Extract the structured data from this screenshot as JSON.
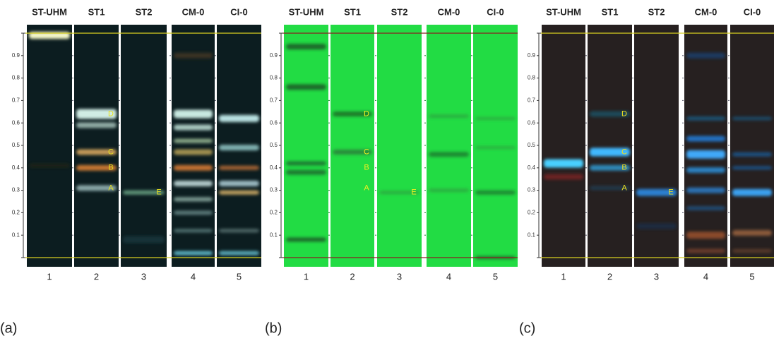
{
  "panels": [
    {
      "label": "(a)",
      "lanes": [
        {
          "name": "ST-UHM",
          "number": "1"
        },
        {
          "name": "ST1",
          "number": "2"
        },
        {
          "name": "ST2",
          "number": "3"
        },
        {
          "name": "CM-0",
          "number": "4"
        },
        {
          "name": "CI-0",
          "number": "5"
        }
      ],
      "scale": [
        "0.9",
        "0.8",
        "0.7",
        "0.6",
        "0.5",
        "0.4",
        "0.3",
        "0.2",
        "0.1"
      ],
      "markers": [
        "D",
        "C",
        "B",
        "A",
        "E"
      ]
    },
    {
      "label": "(b)",
      "lanes": [
        {
          "name": "ST-UHM",
          "number": "1"
        },
        {
          "name": "ST1",
          "number": "2"
        },
        {
          "name": "ST2",
          "number": "3"
        },
        {
          "name": "CM-0",
          "number": "4"
        },
        {
          "name": "CI-0",
          "number": "5"
        }
      ],
      "scale": [
        "0.9",
        "0.8",
        "0.7",
        "0.6",
        "0.5",
        "0.4",
        "0.3",
        "0.2",
        "0.1"
      ],
      "markers": [
        "D",
        "C",
        "B",
        "A",
        "E"
      ]
    },
    {
      "label": "(c)",
      "lanes": [
        {
          "name": "ST-UHM",
          "number": "1"
        },
        {
          "name": "ST1",
          "number": "2"
        },
        {
          "name": "ST2",
          "number": "3"
        },
        {
          "name": "CM-0",
          "number": "4"
        },
        {
          "name": "CI-0",
          "number": "5"
        }
      ],
      "scale": [
        "0.9",
        "0.8",
        "0.7",
        "0.6",
        "0.5",
        "0.4",
        "0.3",
        "0.2",
        "0.1"
      ],
      "markers": [
        "D",
        "C",
        "B",
        "A",
        "E"
      ]
    }
  ]
}
